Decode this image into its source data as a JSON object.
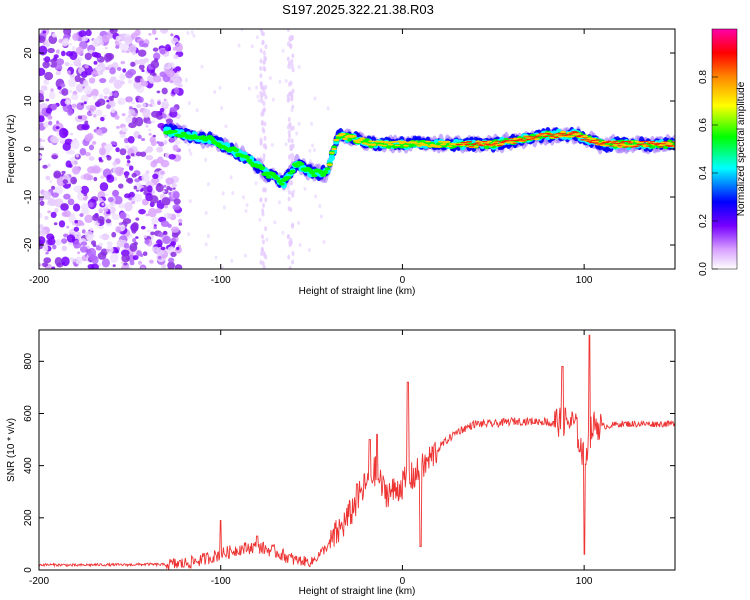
{
  "title": "S197.2025.322.21.38.R03",
  "chart_data": [
    {
      "type": "heatmap",
      "name": "spectrogram",
      "xlabel": "Height of straight line (km)",
      "ylabel": "Frequency (Hz)",
      "xlim": [
        -200,
        150
      ],
      "ylim": [
        -25,
        25
      ],
      "xticks": [
        -200,
        -100,
        0,
        100
      ],
      "yticks": [
        -20,
        -10,
        0,
        10,
        20
      ],
      "colorbar": {
        "label": "Normalized spectral amplitude",
        "range": [
          0,
          1
        ],
        "ticks": [
          0.0,
          0.2,
          0.4,
          0.6,
          0.8
        ],
        "colors": [
          "#ffffff",
          "#cc66ff",
          "#7700ff",
          "#0000ff",
          "#00ffff",
          "#00ff00",
          "#ffff00",
          "#ff8800",
          "#ff0000",
          "#ff00aa"
        ]
      },
      "ridge": [
        {
          "x": -130,
          "y": 4
        },
        {
          "x": -120,
          "y": 3
        },
        {
          "x": -105,
          "y": 2
        },
        {
          "x": -95,
          "y": 0
        },
        {
          "x": -85,
          "y": -2
        },
        {
          "x": -75,
          "y": -5
        },
        {
          "x": -65,
          "y": -7
        },
        {
          "x": -58,
          "y": -3
        },
        {
          "x": -50,
          "y": -5
        },
        {
          "x": -42,
          "y": -5
        },
        {
          "x": -35,
          "y": 3
        },
        {
          "x": -25,
          "y": 2
        },
        {
          "x": -15,
          "y": 1
        },
        {
          "x": 0,
          "y": 1
        },
        {
          "x": 20,
          "y": 1
        },
        {
          "x": 50,
          "y": 1
        },
        {
          "x": 80,
          "y": 3
        },
        {
          "x": 95,
          "y": 3
        },
        {
          "x": 110,
          "y": 1
        },
        {
          "x": 150,
          "y": 1
        }
      ]
    },
    {
      "type": "line",
      "name": "snr",
      "xlabel": "Height of straight line (km)",
      "ylabel": "SNR (10 * v/v)",
      "xlim": [
        -200,
        150
      ],
      "ylim": [
        0,
        920
      ],
      "xticks": [
        -200,
        -100,
        0,
        100
      ],
      "yticks": [
        0,
        200,
        400,
        600,
        800
      ],
      "color": "#ee3333",
      "series": [
        {
          "name": "SNR",
          "x": [
            -200,
            -190,
            -180,
            -170,
            -160,
            -150,
            -140,
            -130,
            -120,
            -110,
            -100,
            -90,
            -80,
            -70,
            -60,
            -50,
            -40,
            -30,
            -20,
            -15,
            -10,
            -5,
            0,
            10,
            20,
            30,
            40,
            50,
            60,
            70,
            80,
            90,
            95,
            100,
            103,
            106,
            110,
            120,
            130,
            140,
            150
          ],
          "y": [
            20,
            20,
            18,
            20,
            20,
            20,
            22,
            20,
            25,
            40,
            60,
            80,
            90,
            70,
            40,
            30,
            100,
            200,
            330,
            380,
            300,
            300,
            330,
            380,
            470,
            530,
            560,
            560,
            570,
            570,
            570,
            570,
            560,
            420,
            520,
            560,
            550,
            560,
            560,
            560,
            560
          ]
        }
      ],
      "spikes": [
        {
          "x": -100,
          "y": 190
        },
        {
          "x": -80,
          "y": 130
        },
        {
          "x": -25,
          "y": 330
        },
        {
          "x": -18,
          "y": 500
        },
        {
          "x": -14,
          "y": 520
        },
        {
          "x": 3,
          "y": 720
        },
        {
          "x": 10,
          "y": 90
        },
        {
          "x": 88,
          "y": 780
        },
        {
          "x": 100,
          "y": 60
        },
        {
          "x": 103,
          "y": 900
        }
      ]
    }
  ]
}
